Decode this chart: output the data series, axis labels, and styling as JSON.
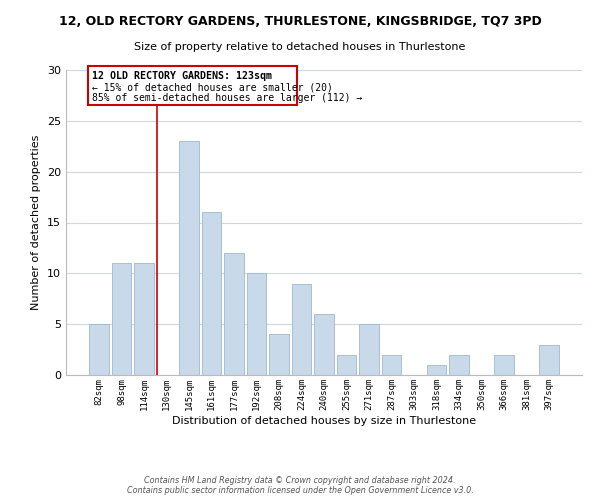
{
  "title_line1": "12, OLD RECTORY GARDENS, THURLESTONE, KINGSBRIDGE, TQ7 3PD",
  "title_line2": "Size of property relative to detached houses in Thurlestone",
  "xlabel": "Distribution of detached houses by size in Thurlestone",
  "ylabel": "Number of detached properties",
  "bar_color": "#c8d9ea",
  "bar_edge_color": "#9fb8d0",
  "categories": [
    "82sqm",
    "98sqm",
    "114sqm",
    "130sqm",
    "145sqm",
    "161sqm",
    "177sqm",
    "192sqm",
    "208sqm",
    "224sqm",
    "240sqm",
    "255sqm",
    "271sqm",
    "287sqm",
    "303sqm",
    "318sqm",
    "334sqm",
    "350sqm",
    "366sqm",
    "381sqm",
    "397sqm"
  ],
  "values": [
    5,
    11,
    11,
    0,
    23,
    16,
    12,
    10,
    4,
    9,
    6,
    2,
    5,
    2,
    0,
    1,
    2,
    0,
    2,
    0,
    3
  ],
  "annotation_line1": "12 OLD RECTORY GARDENS: 123sqm",
  "annotation_line2": "← 15% of detached houses are smaller (20)",
  "annotation_line3": "85% of semi-detached houses are larger (112) →",
  "ylim": [
    0,
    30
  ],
  "yticks": [
    0,
    5,
    10,
    15,
    20,
    25,
    30
  ],
  "footnote1": "Contains HM Land Registry data © Crown copyright and database right 2024.",
  "footnote2": "Contains public sector information licensed under the Open Government Licence v3.0.",
  "bg_color": "#ffffff",
  "grid_color": "#ccd9e5",
  "ref_line_color": "#cc0000",
  "box_edge_color": "#cc0000"
}
